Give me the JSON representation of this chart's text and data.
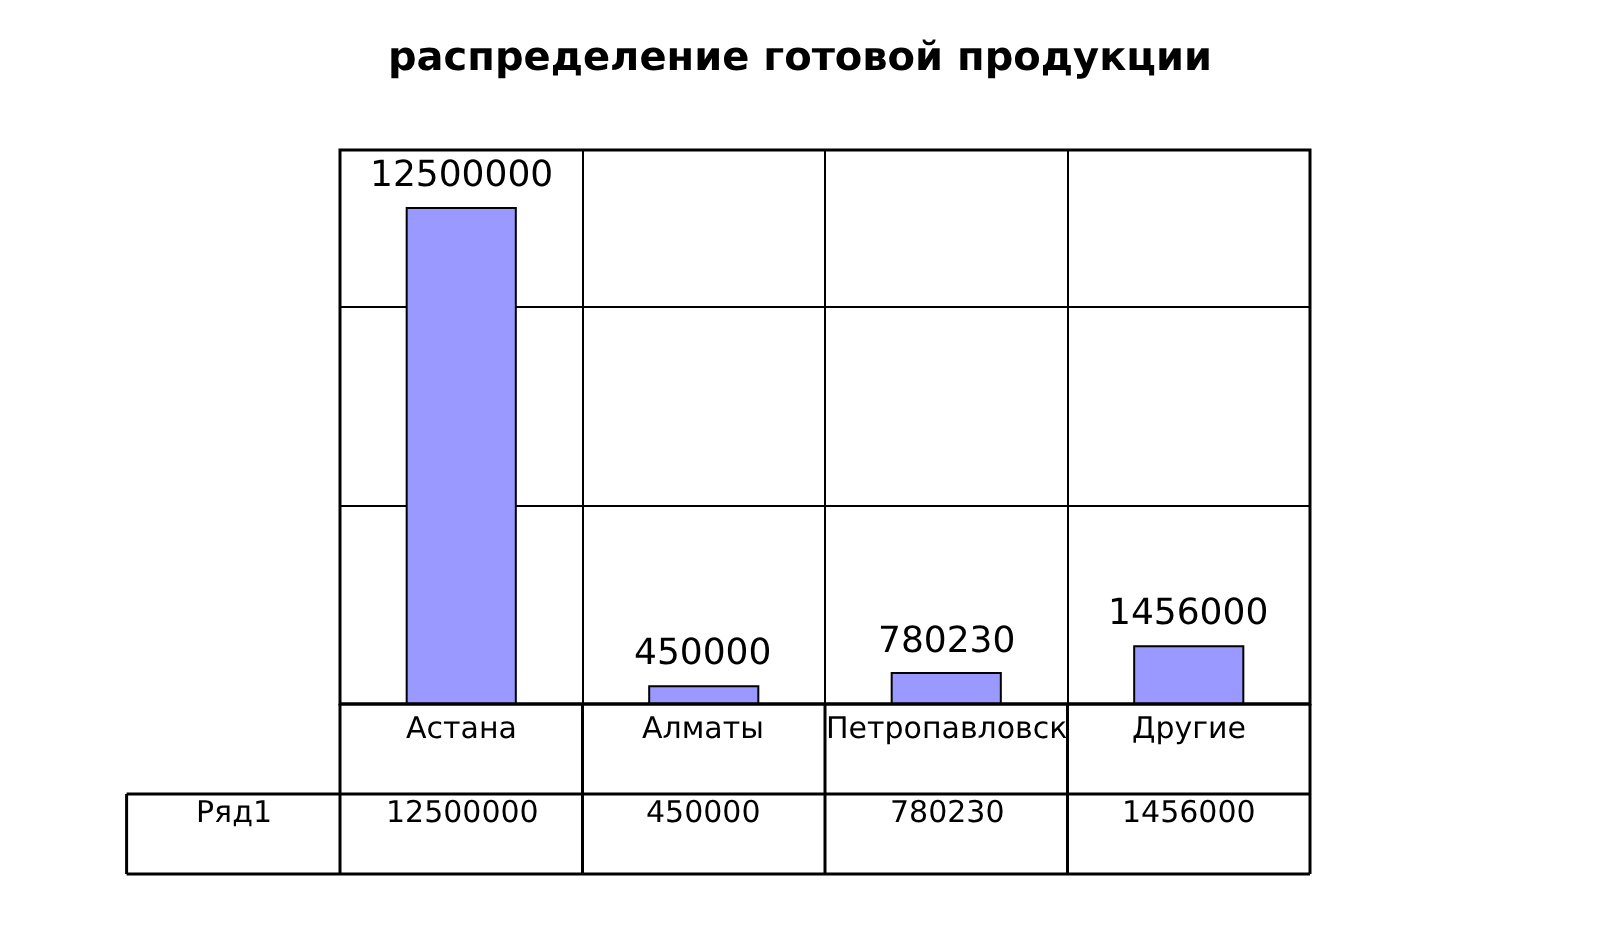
{
  "chart_data": [
    {
      "type": "bar",
      "title": "распределение готовой продукции",
      "categories": [
        "Астана",
        "Алматы",
        "Петропавловск",
        "Другие"
      ],
      "series": [
        {
          "color": "#9999ff",
          "values": [
            12500000,
            450000,
            780230,
            1456000
          ],
          "value_labels": [
            "12500000",
            "450000",
            "780230",
            "1456000"
          ]
        }
      ],
      "grid": true
    },
    {
      "type": "other",
      "series": [
        {
          "name": "Ряд1",
          "values": [
            12500000,
            450000,
            780230,
            1456000
          ]
        }
      ],
      "data_labels": true
    }
  ]
}
